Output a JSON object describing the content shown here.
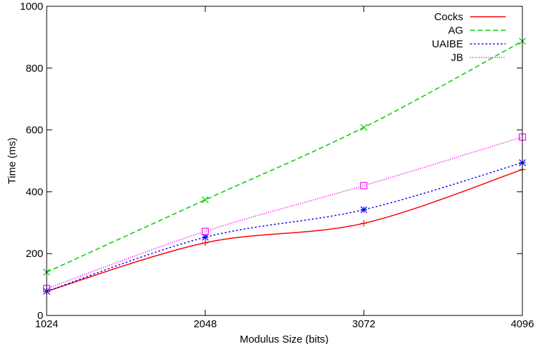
{
  "chart_data": {
    "type": "line",
    "title": "",
    "xlabel": "Modulus Size (bits)",
    "ylabel": "Time (ms)",
    "x": [
      1024,
      2048,
      3072,
      4096
    ],
    "x_tick_labels": [
      "1024",
      "2048",
      "3072",
      "4096"
    ],
    "y_ticks": [
      0,
      200,
      400,
      600,
      800,
      1000
    ],
    "y_tick_labels": [
      "0",
      "200",
      "400",
      "600",
      "800",
      "1000"
    ],
    "xlim": [
      1024,
      4096
    ],
    "ylim": [
      0,
      1000
    ],
    "grid": false,
    "legend_position": "top-right",
    "series": [
      {
        "name": "Cocks",
        "values": [
          78,
          235,
          298,
          472
        ],
        "color": "#ff0000",
        "dash": "solid",
        "marker": "plus"
      },
      {
        "name": "AG",
        "values": [
          140,
          374,
          608,
          887
        ],
        "color": "#00cc00",
        "dash": "dashed",
        "marker": "cross"
      },
      {
        "name": "UAIBE",
        "values": [
          78,
          253,
          342,
          494
        ],
        "color": "#0000ff",
        "dash": "dotted",
        "marker": "star"
      },
      {
        "name": "JB",
        "values": [
          87,
          272,
          420,
          577
        ],
        "color": "#ff00ff",
        "dash": "fine-dotted",
        "marker": "square"
      }
    ]
  }
}
